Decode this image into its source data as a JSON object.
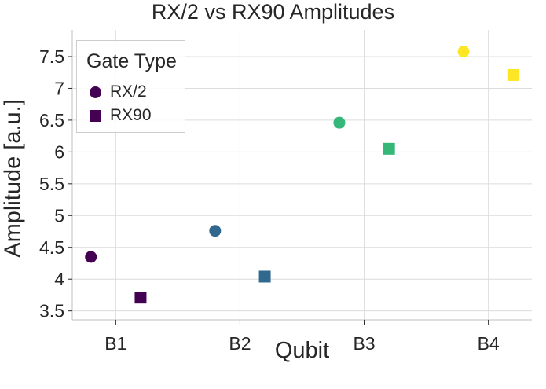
{
  "chart_data": {
    "type": "scatter",
    "title": "RX/2 vs RX90 Amplitudes",
    "xlabel": "Qubit",
    "ylabel": "Amplitude [a.u.]",
    "categories": [
      "B1",
      "B2",
      "B3",
      "B4"
    ],
    "ylim": [
      3.36,
      7.92
    ],
    "yticks": [
      3.5,
      4,
      4.5,
      5,
      5.5,
      6,
      6.5,
      7,
      7.5
    ],
    "ytick_labels": [
      "3.5",
      "4",
      "4.5",
      "5",
      "5.5",
      "6",
      "6.5",
      "7",
      "7.5"
    ],
    "grid": true,
    "legend": {
      "title": "Gate Type",
      "placement": "top-left"
    },
    "point_colors": [
      "#440154",
      "#31688e",
      "#35b779",
      "#fde725"
    ],
    "series": [
      {
        "name": "RX/2",
        "marker": "circle",
        "values": [
          4.35,
          4.76,
          6.46,
          7.58
        ],
        "offset": -0.2
      },
      {
        "name": "RX90",
        "marker": "square",
        "values": [
          3.71,
          4.04,
          6.05,
          7.21
        ],
        "offset": 0.2
      }
    ]
  }
}
